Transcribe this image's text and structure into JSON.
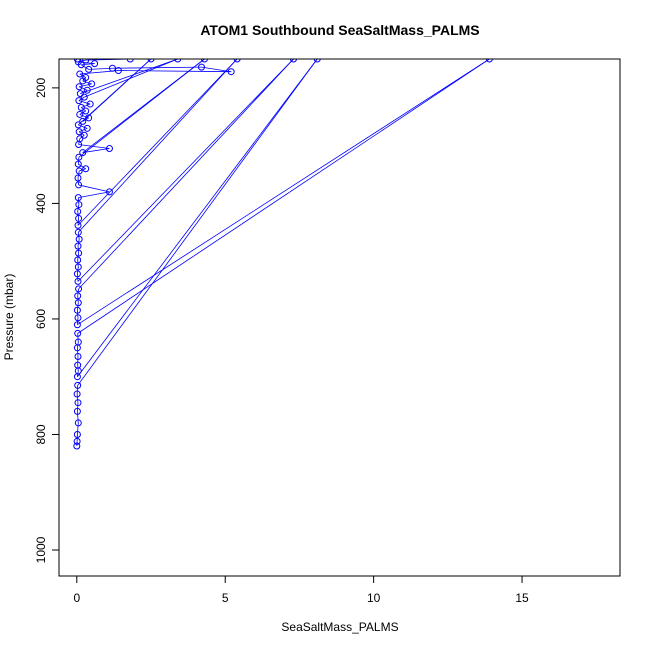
{
  "chart_data": {
    "type": "scatter",
    "title": "ATOM1 Southbound SeaSaltMass_PALMS",
    "xlabel": "SeaSaltMass_PALMS",
    "ylabel": "Pressure (mbar)",
    "xlim": [
      -0.6,
      18.3
    ],
    "ylim": [
      1045,
      150
    ],
    "y_reversed": true,
    "x_ticks": [
      0,
      5,
      10,
      15
    ],
    "y_ticks": [
      200,
      400,
      600,
      800,
      1000
    ],
    "x_tick_labels": [
      "0",
      "5",
      "10",
      "15"
    ],
    "y_tick_labels": [
      "200",
      "400",
      "600",
      "800",
      "1000"
    ],
    "grid": false,
    "legend": "none",
    "series_color": "#0000FF",
    "marker": "open circle",
    "connected": true,
    "series": [
      {
        "points": [
          {
            "x": 0.0,
            "y": 820
          },
          {
            "x": 0.01,
            "y": 812
          },
          {
            "x": 0.02,
            "y": 800
          },
          {
            "x": 0.05,
            "y": 780
          },
          {
            "x": 0.02,
            "y": 760
          },
          {
            "x": 0.04,
            "y": 745
          },
          {
            "x": 0.01,
            "y": 730
          },
          {
            "x": 0.03,
            "y": 715
          },
          {
            "x": 8.1,
            "y": 150
          },
          {
            "x": 0.02,
            "y": 700
          },
          {
            "x": 0.05,
            "y": 690
          },
          {
            "x": 0.03,
            "y": 680
          },
          {
            "x": 0.04,
            "y": 665
          },
          {
            "x": 0.02,
            "y": 650
          },
          {
            "x": 0.05,
            "y": 640
          },
          {
            "x": 0.03,
            "y": 625
          },
          {
            "x": 13.9,
            "y": 150
          },
          {
            "x": 0.02,
            "y": 610
          },
          {
            "x": 0.04,
            "y": 598
          },
          {
            "x": 0.02,
            "y": 585
          },
          {
            "x": 0.05,
            "y": 572
          },
          {
            "x": 0.03,
            "y": 560
          },
          {
            "x": 0.06,
            "y": 548
          },
          {
            "x": 7.3,
            "y": 150
          },
          {
            "x": 0.04,
            "y": 535
          },
          {
            "x": 0.02,
            "y": 522
          },
          {
            "x": 0.05,
            "y": 510
          },
          {
            "x": 0.03,
            "y": 498
          },
          {
            "x": 0.06,
            "y": 486
          },
          {
            "x": 0.04,
            "y": 474
          },
          {
            "x": 0.08,
            "y": 462
          },
          {
            "x": 0.05,
            "y": 450
          },
          {
            "x": 5.4,
            "y": 150
          },
          {
            "x": 0.04,
            "y": 438
          },
          {
            "x": 0.06,
            "y": 426
          },
          {
            "x": 0.03,
            "y": 414
          },
          {
            "x": 0.07,
            "y": 402
          },
          {
            "x": 0.05,
            "y": 390
          },
          {
            "x": 1.1,
            "y": 380
          },
          {
            "x": 0.06,
            "y": 368
          },
          {
            "x": 0.04,
            "y": 356
          },
          {
            "x": 0.08,
            "y": 344
          },
          {
            "x": 0.3,
            "y": 340
          },
          {
            "x": 0.05,
            "y": 332
          },
          {
            "x": 0.07,
            "y": 320
          },
          {
            "x": 4.3,
            "y": 150
          },
          {
            "x": 0.2,
            "y": 312
          },
          {
            "x": 1.1,
            "y": 305
          },
          {
            "x": 0.06,
            "y": 298
          },
          {
            "x": 0.1,
            "y": 288
          },
          {
            "x": 0.25,
            "y": 282
          },
          {
            "x": 0.08,
            "y": 276
          },
          {
            "x": 0.35,
            "y": 270
          },
          {
            "x": 0.05,
            "y": 264
          },
          {
            "x": 2.5,
            "y": 150
          },
          {
            "x": 0.2,
            "y": 258
          },
          {
            "x": 0.4,
            "y": 252
          },
          {
            "x": 0.1,
            "y": 246
          },
          {
            "x": 0.3,
            "y": 240
          },
          {
            "x": 0.15,
            "y": 234
          },
          {
            "x": 0.45,
            "y": 228
          },
          {
            "x": 0.07,
            "y": 222
          },
          {
            "x": 0.25,
            "y": 216
          },
          {
            "x": 3.4,
            "y": 150
          },
          {
            "x": 0.12,
            "y": 210
          },
          {
            "x": 0.35,
            "y": 204
          },
          {
            "x": 0.08,
            "y": 198
          },
          {
            "x": 0.5,
            "y": 193
          },
          {
            "x": 0.2,
            "y": 188
          },
          {
            "x": 0.3,
            "y": 182
          },
          {
            "x": 0.1,
            "y": 176
          },
          {
            "x": 1.4,
            "y": 170
          },
          {
            "x": 5.2,
            "y": 172
          },
          {
            "x": 4.2,
            "y": 164
          },
          {
            "x": 1.2,
            "y": 166
          },
          {
            "x": 0.4,
            "y": 168
          },
          {
            "x": 0.15,
            "y": 160
          },
          {
            "x": 0.6,
            "y": 158
          },
          {
            "x": 0.05,
            "y": 155
          },
          {
            "x": 0.3,
            "y": 152
          },
          {
            "x": 1.8,
            "y": 150
          },
          {
            "x": 0.02,
            "y": 150
          }
        ]
      }
    ]
  }
}
